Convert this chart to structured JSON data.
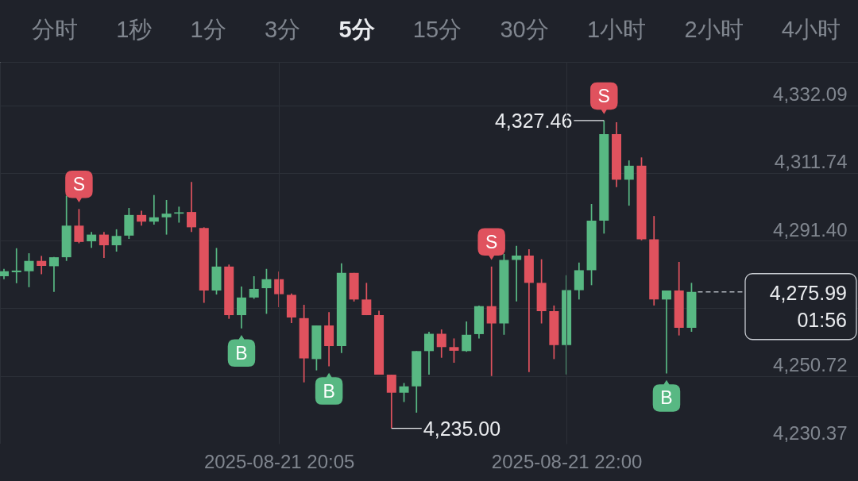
{
  "chart_data": [
    {
      "type": "other",
      "annotations": [
        "分时",
        "1秒",
        "1分",
        "3分",
        "5分",
        "15分",
        "30分",
        "1小时",
        "2小时",
        "4小时"
      ]
    },
    {
      "type": "candlestick",
      "x": [
        "2025-08-21T18:15",
        "2025-08-21T18:20",
        "2025-08-21T18:25",
        "2025-08-21T18:30",
        "2025-08-21T18:35",
        "2025-08-21T18:40",
        "2025-08-21T18:45",
        "2025-08-21T18:50",
        "2025-08-21T18:55",
        "2025-08-21T19:00",
        "2025-08-21T19:05",
        "2025-08-21T19:10",
        "2025-08-21T19:15",
        "2025-08-21T19:20",
        "2025-08-21T19:25",
        "2025-08-21T19:30",
        "2025-08-21T19:35",
        "2025-08-21T19:40",
        "2025-08-21T19:45",
        "2025-08-21T19:50",
        "2025-08-21T19:55",
        "2025-08-21T20:00",
        "2025-08-21T20:05",
        "2025-08-21T20:10",
        "2025-08-21T20:15",
        "2025-08-21T20:20",
        "2025-08-21T20:25",
        "2025-08-21T20:30",
        "2025-08-21T20:35",
        "2025-08-21T20:40",
        "2025-08-21T20:45",
        "2025-08-21T20:50",
        "2025-08-21T20:55",
        "2025-08-21T21:00",
        "2025-08-21T21:05",
        "2025-08-21T21:10",
        "2025-08-21T21:15",
        "2025-08-21T21:20",
        "2025-08-21T21:25",
        "2025-08-21T21:30",
        "2025-08-21T21:35",
        "2025-08-21T21:40",
        "2025-08-21T21:45",
        "2025-08-21T21:50",
        "2025-08-21T21:55",
        "2025-08-21T22:00",
        "2025-08-21T22:05",
        "2025-08-21T22:10",
        "2025-08-21T22:15",
        "2025-08-21T22:20",
        "2025-08-21T22:25",
        "2025-08-21T22:30",
        "2025-08-21T22:35",
        "2025-08-21T22:40",
        "2025-08-21T22:45",
        "2025-08-21T22:50"
      ],
      "ohlc": [
        [
          4280.7,
          4282.9,
          4279.8,
          4282.2
        ],
        [
          4281.9,
          4289.1,
          4278.6,
          4282.4
        ],
        [
          4282.2,
          4287.6,
          4277.4,
          4285.3
        ],
        [
          4285.3,
          4286.8,
          4281.3,
          4283.8
        ],
        [
          4283.7,
          4286.5,
          4276.0,
          4286.4
        ],
        [
          4286.4,
          4304.9,
          4285.3,
          4295.9
        ],
        [
          4295.9,
          4300.9,
          4290.6,
          4291.0
        ],
        [
          4291.2,
          4294.0,
          4289.2,
          4293.2
        ],
        [
          4293.2,
          4294.0,
          4286.2,
          4290.0
        ],
        [
          4290.0,
          4294.8,
          4288.1,
          4292.8
        ],
        [
          4292.9,
          4301.2,
          4291.9,
          4299.1
        ],
        [
          4299.1,
          4300.4,
          4295.9,
          4297.1
        ],
        [
          4297.1,
          4305.1,
          4296.2,
          4298.4
        ],
        [
          4298.4,
          4303.6,
          4293.2,
          4299.5
        ],
        [
          4299.5,
          4301.6,
          4296.8,
          4299.9
        ],
        [
          4300.0,
          4309.0,
          4294.0,
          4295.4
        ],
        [
          4295.2,
          4295.4,
          4272.7,
          4276.4
        ],
        [
          4276.4,
          4289.2,
          4275.2,
          4283.6
        ],
        [
          4283.6,
          4284.2,
          4267.9,
          4269.0
        ],
        [
          4269.0,
          4277.6,
          4265.0,
          4274.3
        ],
        [
          4274.3,
          4280.7,
          4273.9,
          4276.9
        ],
        [
          4277.1,
          4282.9,
          4269.4,
          4279.8
        ],
        [
          4279.8,
          4282.1,
          4271.4,
          4275.3
        ],
        [
          4275.1,
          4275.5,
          4266.6,
          4268.3
        ],
        [
          4268.1,
          4272.1,
          4248.8,
          4256.0
        ],
        [
          4255.8,
          4265.9,
          4252.4,
          4265.9
        ],
        [
          4265.9,
          4269.9,
          4253.6,
          4259.7
        ],
        [
          4259.7,
          4284.6,
          4257.6,
          4281.7
        ],
        [
          4281.7,
          4281.7,
          4273.1,
          4273.7
        ],
        [
          4273.7,
          4278.7,
          4269.0,
          4269.0
        ],
        [
          4269.0,
          4270.3,
          4251.1,
          4251.1
        ],
        [
          4251.1,
          4251.1,
          4235.0,
          4245.7
        ],
        [
          4245.7,
          4248.6,
          4242.9,
          4247.6
        ],
        [
          4247.6,
          4258.2,
          4239.7,
          4258.2
        ],
        [
          4258.2,
          4264.0,
          4251.1,
          4263.4
        ],
        [
          4263.4,
          4264.7,
          4256.2,
          4259.4
        ],
        [
          4259.4,
          4262.0,
          4254.7,
          4258.3
        ],
        [
          4258.2,
          4267.1,
          4258.0,
          4263.1
        ],
        [
          4263.3,
          4271.9,
          4262.0,
          4271.7
        ],
        [
          4271.7,
          4283.6,
          4250.7,
          4266.5
        ],
        [
          4266.5,
          4287.4,
          4263.1,
          4285.6
        ],
        [
          4285.6,
          4289.8,
          4273.1,
          4286.9
        ],
        [
          4286.9,
          4288.8,
          4251.9,
          4278.7
        ],
        [
          4278.7,
          4285.8,
          4266.5,
          4270.2
        ],
        [
          4270.2,
          4271.9,
          4255.8,
          4260.0
        ],
        [
          4260.0,
          4281.0,
          4251.2,
          4276.5
        ],
        [
          4276.5,
          4284.8,
          4273.7,
          4282.5
        ],
        [
          4282.5,
          4302.4,
          4278.0,
          4297.4
        ],
        [
          4297.4,
          4327.46,
          4293.5,
          4323.4
        ],
        [
          4323.4,
          4327.0,
          4307.5,
          4309.7
        ],
        [
          4309.7,
          4315.5,
          4301.9,
          4313.9
        ],
        [
          4313.9,
          4316.4,
          4291.5,
          4291.8
        ],
        [
          4291.8,
          4298.8,
          4271.9,
          4273.7
        ],
        [
          4273.7,
          4276.4,
          4251.5,
          4276.4
        ],
        [
          4276.4,
          4285.0,
          4262.9,
          4265.2
        ],
        [
          4265.2,
          4278.7,
          4264.0,
          4275.99
        ]
      ],
      "colors": [
        "#58b883",
        "#58b883",
        "#58b883",
        "#e0525e",
        "#58b883",
        "#58b883",
        "#e0525e",
        "#58b883",
        "#e0525e",
        "#58b883",
        "#58b883",
        "#e0525e",
        "#58b883",
        "#58b883",
        "#58b883",
        "#e0525e",
        "#e0525e",
        "#58b883",
        "#e0525e",
        "#58b883",
        "#58b883",
        "#58b883",
        "#e0525e",
        "#e0525e",
        "#e0525e",
        "#58b883",
        "#e0525e",
        "#58b883",
        "#e0525e",
        "#e0525e",
        "#e0525e",
        "#e0525e",
        "#58b883",
        "#58b883",
        "#58b883",
        "#e0525e",
        "#e0525e",
        "#58b883",
        "#58b883",
        "#e0525e",
        "#58b883",
        "#58b883",
        "#e0525e",
        "#e0525e",
        "#e0525e",
        "#58b883",
        "#58b883",
        "#58b883",
        "#58b883",
        "#e0525e",
        "#58b883",
        "#e0525e",
        "#e0525e",
        "#58b883",
        "#e0525e",
        "#58b883"
      ],
      "xlim": [
        "2025-08-21T18:15",
        "2025-08-21T23:55"
      ],
      "ylim": [
        4230.37,
        4345.1
      ],
      "xticks": [
        {
          "value": "2025-08-21T20:05",
          "label": "2025-08-21 20:05"
        },
        {
          "value": "2025-08-21T22:00",
          "label": "2025-08-21 22:00"
        }
      ],
      "yticks": [
        {
          "value": 4230.37,
          "label": "4,230.37"
        },
        {
          "value": 4250.72,
          "label": "4,250.72"
        },
        {
          "value": 4271.06,
          "label": null
        },
        {
          "value": 4291.4,
          "label": "4,291.40"
        },
        {
          "value": 4311.74,
          "label": "4,311.74"
        },
        {
          "value": 4332.09,
          "label": "4,332.09"
        }
      ],
      "grid": true,
      "ref_lines": [
        {
          "axis": "y",
          "value": 4275.99,
          "label": "4,275.99",
          "line_style": "dashed",
          "color": "#aeb3bb"
        }
      ],
      "annotations": [
        "01:56",
        {
          "text": "S",
          "x": "2025-08-21T18:45",
          "y": 4300.9
        },
        {
          "text": "B",
          "x": "2025-08-21T19:50",
          "y": 4265.0
        },
        {
          "text": "B",
          "x": "2025-08-21T20:25",
          "y": 4253.6
        },
        {
          "text": "S",
          "x": "2025-08-21T21:30",
          "y": 4283.6
        },
        {
          "text": "S",
          "x": "2025-08-21T22:15",
          "y": 4327.46
        },
        {
          "text": "B",
          "x": "2025-08-21T22:40",
          "y": 4251.5
        },
        {
          "text": "4,235.00",
          "x": "2025-08-21T20:50",
          "y": 4235.0
        },
        {
          "text": "4,327.46",
          "x": "2025-08-21T22:15",
          "y": 4327.46
        }
      ]
    }
  ]
}
